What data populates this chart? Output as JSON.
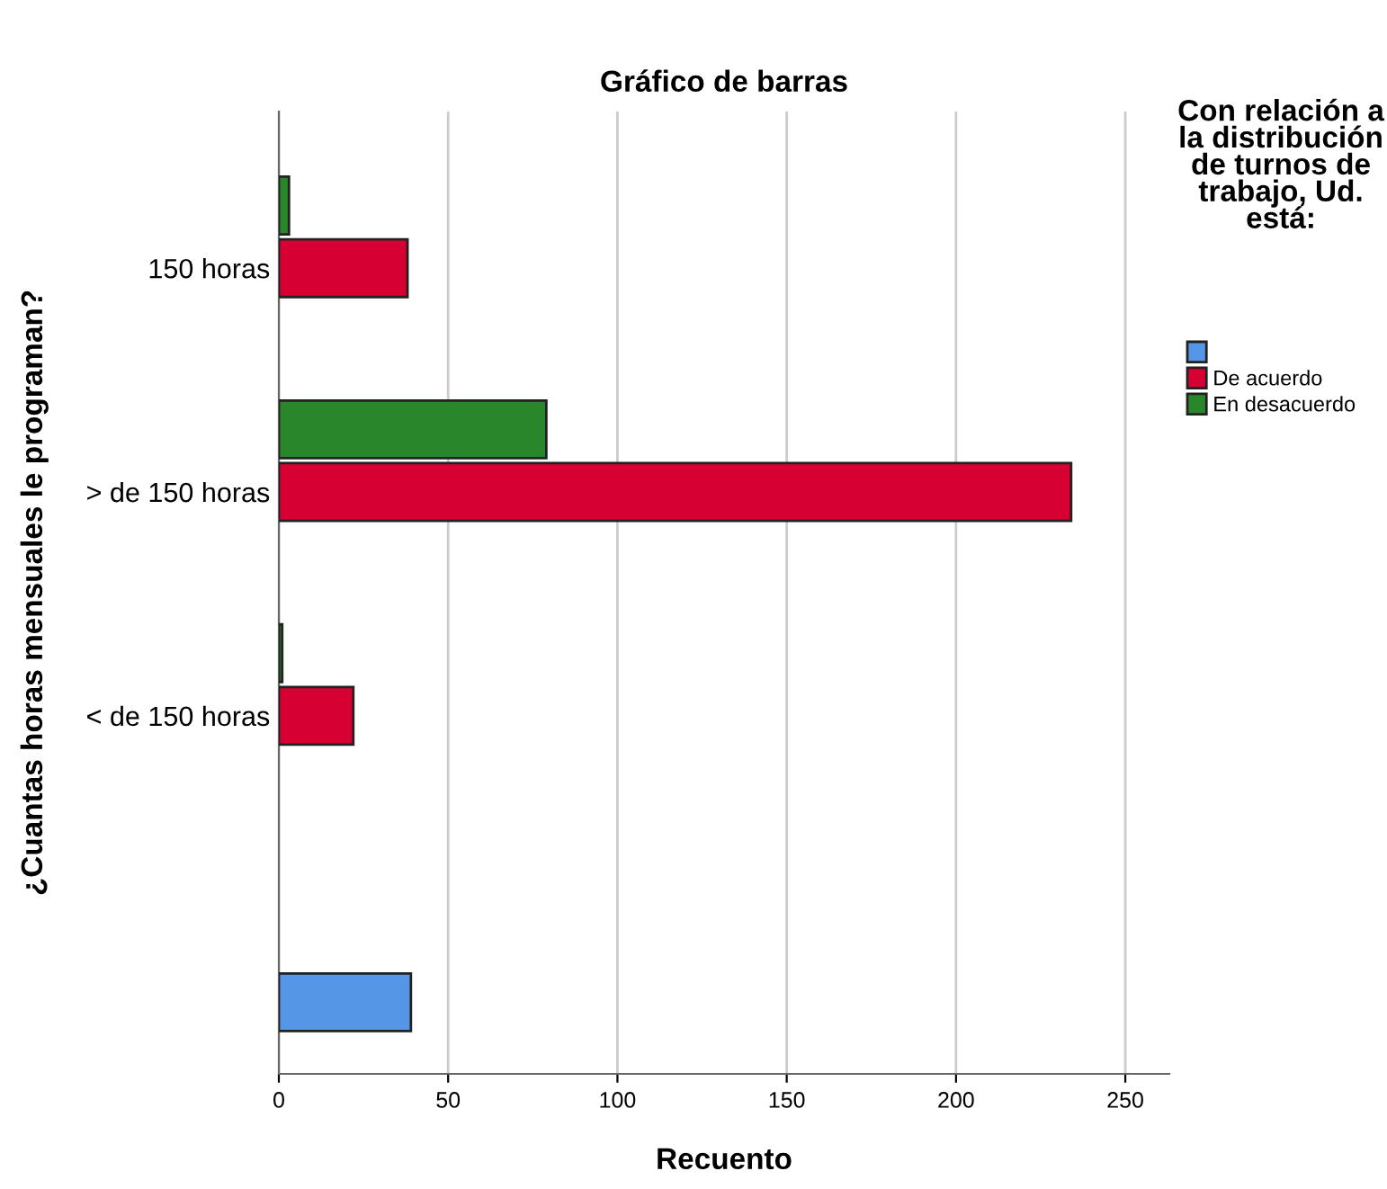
{
  "chart_data": {
    "type": "bar",
    "orientation": "horizontal",
    "title": "Gráfico de barras",
    "xlabel": "Recuento",
    "ylabel": "¿Cuantas horas mensuales le programan?",
    "legend_title": "Con relación a la distribución de turnos de trabajo, Ud. está:",
    "categories": [
      "150 horas",
      "> de 150 horas",
      "< de 150 horas",
      null
    ],
    "series": [
      {
        "color": "#5596e6",
        "values": [
          null,
          null,
          null,
          39
        ]
      },
      {
        "name": "De acuerdo",
        "color": "#d60032",
        "values": [
          38,
          234,
          22,
          null
        ]
      },
      {
        "name": "En desacuerdo",
        "color": "#2a862a",
        "values": [
          3,
          79,
          1,
          null
        ]
      }
    ],
    "xlim": [
      0,
      263
    ],
    "xticks": [
      0,
      50,
      100,
      150,
      200,
      250
    ],
    "grid": "x",
    "legend": "right"
  }
}
